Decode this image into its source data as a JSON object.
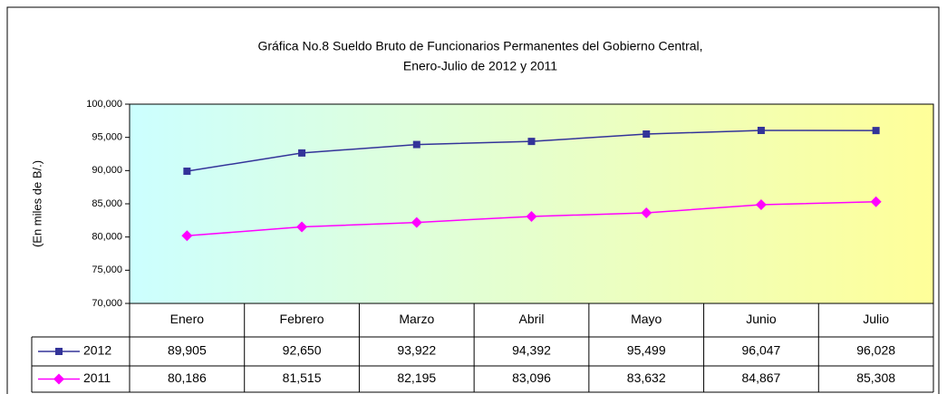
{
  "chart_data": {
    "type": "line",
    "title": [
      "Gráfica No.8 Sueldo Bruto de Funcionarios Permanentes del Gobierno Central,",
      "Enero-Julio de 2012 y 2011"
    ],
    "ylabel": "(En miles de B/.)",
    "categories": [
      "Enero",
      "Febrero",
      "Marzo",
      "Abril",
      "Mayo",
      "Junio",
      "Julio"
    ],
    "ylim": [
      70000,
      100000
    ],
    "yticks": [
      {
        "value": 70000,
        "label": "70,000"
      },
      {
        "value": 75000,
        "label": "75,000"
      },
      {
        "value": 80000,
        "label": "80,000"
      },
      {
        "value": 85000,
        "label": "85,000"
      },
      {
        "value": 90000,
        "label": "90,000"
      },
      {
        "value": 95000,
        "label": "95,000"
      },
      {
        "value": 100000,
        "label": "100,000"
      }
    ],
    "grid": false,
    "series": [
      {
        "name": "2012",
        "color": "#333399",
        "marker": "square",
        "values": [
          89905,
          92650,
          93922,
          94392,
          95499,
          96047,
          96028
        ],
        "value_labels": [
          "89,905",
          "92,650",
          "93,922",
          "94,392",
          "95,499",
          "96,047",
          "96,028"
        ]
      },
      {
        "name": "2011",
        "color": "#ff00ff",
        "marker": "diamond",
        "values": [
          80186,
          81515,
          82195,
          83096,
          83632,
          84867,
          85308
        ],
        "value_labels": [
          "80,186",
          "81,515",
          "82,195",
          "83,096",
          "83,632",
          "84,867",
          "85,308"
        ]
      }
    ]
  }
}
